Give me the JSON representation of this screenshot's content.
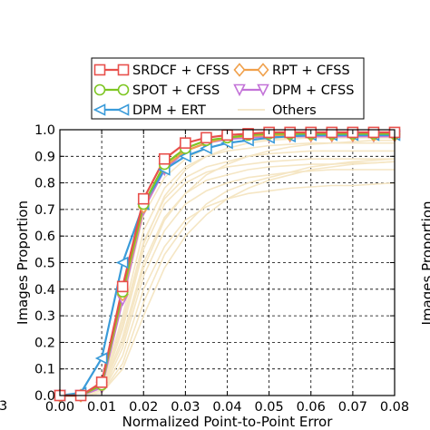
{
  "chart_data": {
    "type": "line",
    "title": "",
    "xlabel": "Normalized Point-to-Point Error",
    "ylabel": "Images Proportion",
    "xlim": [
      0,
      0.08
    ],
    "ylim": [
      0,
      1.0
    ],
    "x_ticks": [
      0.0,
      0.01,
      0.02,
      0.03,
      0.04,
      0.05,
      0.06,
      0.07,
      0.08
    ],
    "x_tick_labels": [
      "0.00",
      "0.01",
      "0.02",
      "0.03",
      "0.04",
      "0.05",
      "0.06",
      "0.07",
      "0.08"
    ],
    "y_ticks": [
      0.0,
      0.1,
      0.2,
      0.3,
      0.4,
      0.5,
      0.6,
      0.7,
      0.8,
      0.9,
      1.0
    ],
    "y_tick_labels": [
      "0.0",
      "0.1",
      "0.2",
      "0.3",
      "0.4",
      "0.5",
      "0.6",
      "0.7",
      "0.8",
      "0.9",
      "1.0"
    ],
    "grid": true,
    "legend_position": "top-center",
    "x": [
      0.0,
      0.005,
      0.01,
      0.015,
      0.02,
      0.025,
      0.03,
      0.035,
      0.04,
      0.045,
      0.05,
      0.055,
      0.06,
      0.065,
      0.07,
      0.075,
      0.08
    ],
    "series": [
      {
        "name": "SRDCF + CFSS",
        "color": "#e8504c",
        "marker": "square",
        "values": [
          0.0,
          0.0,
          0.05,
          0.41,
          0.74,
          0.89,
          0.95,
          0.97,
          0.98,
          0.985,
          0.99,
          0.99,
          0.99,
          0.99,
          0.99,
          0.99,
          0.99
        ]
      },
      {
        "name": "SPOT + CFSS",
        "color": "#7ec623",
        "marker": "circle",
        "values": [
          0.0,
          0.0,
          0.04,
          0.39,
          0.72,
          0.87,
          0.93,
          0.96,
          0.97,
          0.98,
          0.985,
          0.985,
          0.985,
          0.985,
          0.985,
          0.985,
          0.985
        ]
      },
      {
        "name": "DPM + ERT",
        "color": "#3a9bd9",
        "marker": "triangle-left",
        "values": [
          0.0,
          0.01,
          0.14,
          0.5,
          0.72,
          0.85,
          0.9,
          0.93,
          0.95,
          0.96,
          0.97,
          0.975,
          0.98,
          0.98,
          0.98,
          0.98,
          0.98
        ]
      },
      {
        "name": "RPT + CFSS",
        "color": "#f0a04b",
        "marker": "diamond",
        "values": [
          0.0,
          0.0,
          0.04,
          0.38,
          0.71,
          0.86,
          0.92,
          0.95,
          0.97,
          0.975,
          0.98,
          0.98,
          0.98,
          0.98,
          0.98,
          0.98,
          0.98
        ]
      },
      {
        "name": "DPM + CFSS",
        "color": "#c373d8",
        "marker": "triangle-down",
        "values": [
          0.0,
          0.0,
          0.03,
          0.36,
          0.7,
          0.85,
          0.92,
          0.95,
          0.965,
          0.97,
          0.975,
          0.975,
          0.975,
          0.975,
          0.975,
          0.975,
          0.975
        ]
      },
      {
        "name": "Others",
        "color": "#f5e6c4",
        "marker": "none",
        "values_list": [
          [
            0.0,
            0.0,
            0.04,
            0.35,
            0.68,
            0.82,
            0.89,
            0.93,
            0.95,
            0.96,
            0.965,
            0.97,
            0.97,
            0.97,
            0.97,
            0.97,
            0.97
          ],
          [
            0.0,
            0.0,
            0.03,
            0.3,
            0.62,
            0.78,
            0.86,
            0.9,
            0.92,
            0.93,
            0.94,
            0.945,
            0.95,
            0.95,
            0.95,
            0.95,
            0.95
          ],
          [
            0.0,
            0.0,
            0.03,
            0.28,
            0.58,
            0.74,
            0.82,
            0.86,
            0.88,
            0.9,
            0.91,
            0.915,
            0.92,
            0.92,
            0.92,
            0.92,
            0.92
          ],
          [
            0.0,
            0.0,
            0.02,
            0.25,
            0.55,
            0.72,
            0.8,
            0.84,
            0.86,
            0.87,
            0.88,
            0.885,
            0.89,
            0.89,
            0.89,
            0.89,
            0.89
          ],
          [
            0.0,
            0.0,
            0.02,
            0.22,
            0.5,
            0.67,
            0.76,
            0.81,
            0.83,
            0.85,
            0.86,
            0.865,
            0.87,
            0.87,
            0.875,
            0.875,
            0.88
          ],
          [
            0.0,
            0.0,
            0.01,
            0.18,
            0.45,
            0.62,
            0.72,
            0.77,
            0.8,
            0.82,
            0.83,
            0.84,
            0.845,
            0.85,
            0.85,
            0.85,
            0.85
          ],
          [
            0.0,
            0.0,
            0.01,
            0.15,
            0.4,
            0.56,
            0.66,
            0.71,
            0.74,
            0.76,
            0.77,
            0.78,
            0.785,
            0.79,
            0.79,
            0.795,
            0.8
          ],
          [
            0.0,
            0.0,
            0.01,
            0.12,
            0.35,
            0.53,
            0.64,
            0.72,
            0.77,
            0.8,
            0.82,
            0.84,
            0.86,
            0.87,
            0.88,
            0.885,
            0.89
          ],
          [
            0.0,
            0.0,
            0.02,
            0.2,
            0.48,
            0.66,
            0.76,
            0.83,
            0.87,
            0.9,
            0.92,
            0.935,
            0.945,
            0.95,
            0.955,
            0.96,
            0.96
          ],
          [
            0.0,
            0.0,
            0.01,
            0.1,
            0.3,
            0.48,
            0.6,
            0.68,
            0.74,
            0.78,
            0.81,
            0.83,
            0.85,
            0.86,
            0.87,
            0.875,
            0.88
          ],
          [
            0.0,
            0.0,
            0.02,
            0.26,
            0.57,
            0.75,
            0.85,
            0.9,
            0.93,
            0.95,
            0.96,
            0.965,
            0.97,
            0.97,
            0.97,
            0.97,
            0.97
          ]
        ]
      }
    ]
  },
  "edge_fragments": {
    "left_tick": "3",
    "right_label": "Images Proportion"
  }
}
